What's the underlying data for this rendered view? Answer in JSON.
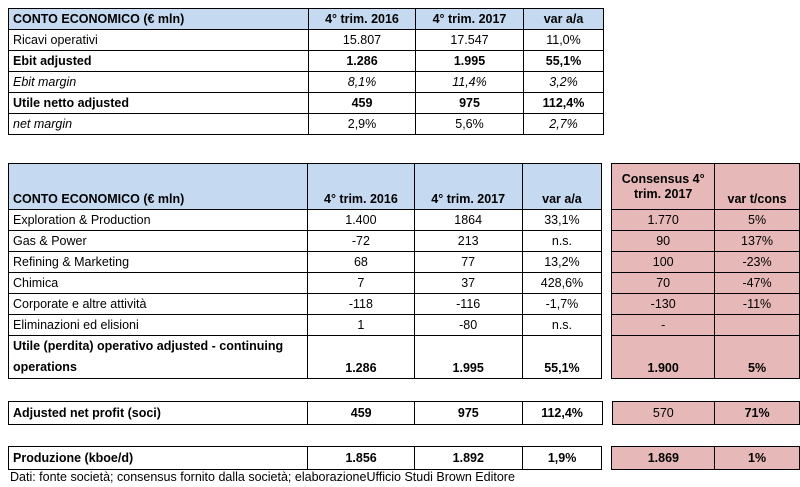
{
  "table1": {
    "headers": [
      "CONTO ECONOMICO (€ mln)",
      "4° trim. 2016",
      "4° trim. 2017",
      "var a/a"
    ],
    "rows": [
      {
        "label": "Ricavi operativi",
        "v2016": "15.807",
        "v2017": "17.547",
        "var": "11,0%"
      },
      {
        "label": "Ebit adjusted",
        "v2016": "1.286",
        "v2017": "1.995",
        "var": "55,1%"
      },
      {
        "label": "Ebit margin",
        "v2016": "8,1%",
        "v2017": "11,4%",
        "var": "3,2%"
      },
      {
        "label": "Utile netto adjusted",
        "v2016": "459",
        "v2017": "975",
        "var": "112,4%"
      },
      {
        "label": "net margin",
        "v2016": "2,9%",
        "v2017": "5,6%",
        "var": "2,7%"
      }
    ]
  },
  "table2": {
    "headers": [
      "CONTO ECONOMICO (€ mln)",
      "4° trim. 2016",
      "4° trim. 2017",
      "var a/a",
      "Consensus 4° trim. 2017",
      "var t/cons"
    ],
    "rows": [
      {
        "label": "Exploration & Production",
        "v2016": "1.400",
        "v2017": "1864",
        "var": "33,1%",
        "cons": "1.770",
        "vcons": "5%"
      },
      {
        "label": "Gas & Power",
        "v2016": "-72",
        "v2017": "213",
        "var": "n.s.",
        "cons": "90",
        "vcons": "137%"
      },
      {
        "label": "Refining & Marketing",
        "v2016": "68",
        "v2017": "77",
        "var": "13,2%",
        "cons": "100",
        "vcons": "-23%"
      },
      {
        "label": "Chimica",
        "v2016": "7",
        "v2017": "37",
        "var": "428,6%",
        "cons": "70",
        "vcons": "-47%"
      },
      {
        "label": "Corporate e altre attività",
        "v2016": "-118",
        "v2017": "-116",
        "var": "-1,7%",
        "cons": "-130",
        "vcons": "-11%"
      },
      {
        "label": "Eliminazioni ed elisioni",
        "v2016": "1",
        "v2017": "-80",
        "var": "n.s.",
        "cons": "-",
        "vcons": ""
      },
      {
        "label": "Utile (perdita) operativo adjusted - continuing operations",
        "v2016": "1.286",
        "v2017": "1.995",
        "var": "55,1%",
        "cons": "1.900",
        "vcons": "5%"
      }
    ]
  },
  "table3": {
    "label": "Adjusted net profit (soci)",
    "v2016": "459",
    "v2017": "975",
    "var": "112,4%",
    "cons": "570",
    "vcons": "71%"
  },
  "table4": {
    "label": "Produzione (kboe/d)",
    "v2016": "1.856",
    "v2017": "1.892",
    "var": "1,9%",
    "cons": "1.869",
    "vcons": "1%"
  },
  "note": "Dati: fonte società; consensus fornito dalla società; elaborazioneUfficio Studi Brown Editore"
}
